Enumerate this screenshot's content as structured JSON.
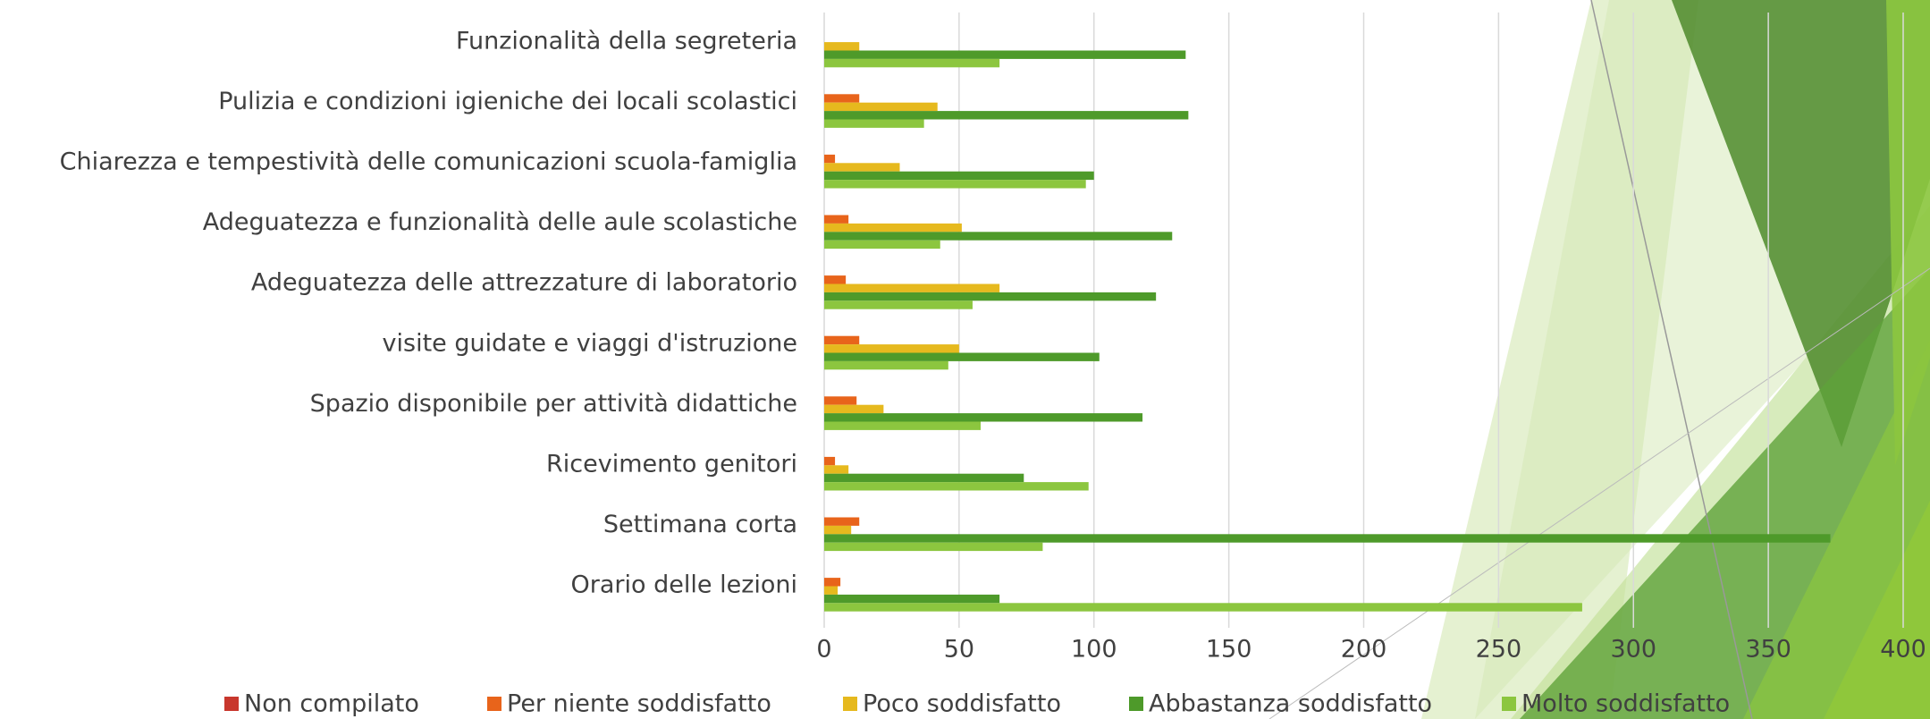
{
  "chart_data": {
    "type": "bar",
    "orientation": "horizontal",
    "categories": [
      "Funzionalità della segreteria",
      "Pulizia e condizioni igieniche dei locali scolastici",
      "Chiarezza e tempestività delle comunicazioni scuola-famiglia",
      "Adeguatezza e funzionalità delle aule scolastiche",
      "Adeguatezza delle attrezzature di laboratorio",
      "visite guidate e viaggi d'istruzione",
      "Spazio disponibile per attività didattiche",
      "Ricevimento genitori",
      "Settimana corta",
      "Orario delle lezioni"
    ],
    "series": [
      {
        "name": "Non compilato",
        "color": "#c8372d",
        "values": [
          0,
          0,
          0,
          0,
          0,
          0,
          0,
          0,
          0,
          0
        ]
      },
      {
        "name": "Per niente soddisfatto",
        "color": "#e8641b",
        "values": [
          0,
          13,
          4,
          9,
          8,
          13,
          12,
          4,
          13,
          6
        ]
      },
      {
        "name": "Poco soddisfatto",
        "color": "#e6b91e",
        "values": [
          13,
          42,
          28,
          51,
          65,
          50,
          22,
          9,
          10,
          5
        ]
      },
      {
        "name": "Abbastanza soddisfatto",
        "color": "#4e9a2a",
        "values": [
          134,
          135,
          100,
          129,
          123,
          102,
          118,
          74,
          373,
          65
        ]
      },
      {
        "name": "Molto soddisfatto",
        "color": "#8cc63f",
        "values": [
          65,
          37,
          97,
          43,
          55,
          46,
          58,
          98,
          81,
          281
        ]
      }
    ],
    "xlim": [
      0,
      400
    ],
    "xticks": [
      0,
      50,
      100,
      150,
      200,
      250,
      300,
      350,
      400
    ],
    "grid": true,
    "legend": "bottom"
  }
}
